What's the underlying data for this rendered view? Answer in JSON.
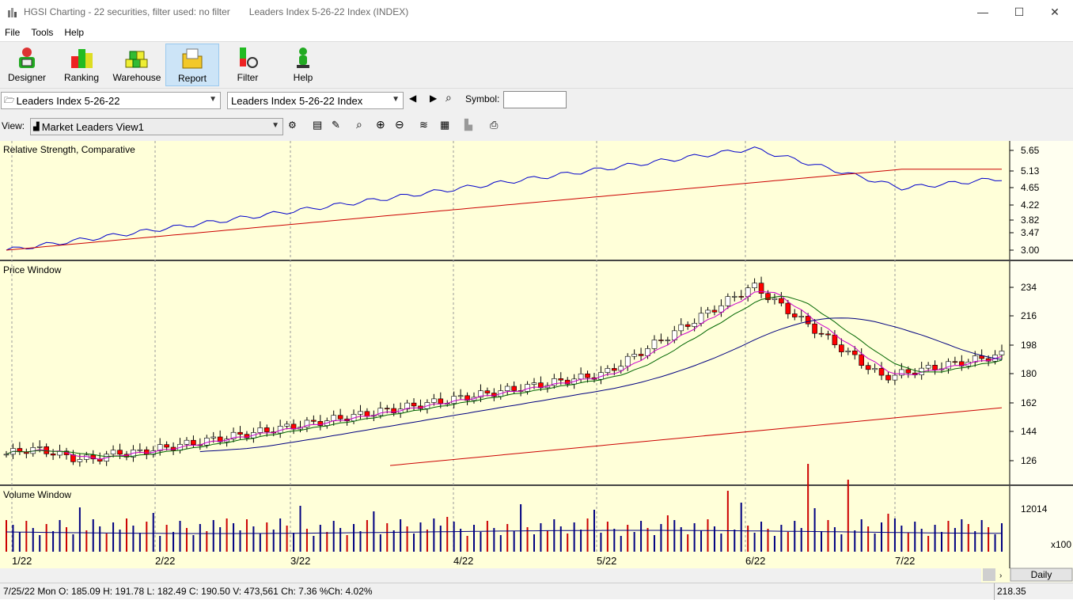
{
  "window": {
    "title": "HGSI Charting - 22 securities, filter used: no filter",
    "subtitle": "Leaders Index 5-26-22 Index (INDEX)",
    "minimize": "—",
    "maximize": "☐",
    "close": "✕"
  },
  "menu": [
    "File",
    "Tools",
    "Help"
  ],
  "toolbar": [
    {
      "label": "Designer",
      "icon": "designer-icon"
    },
    {
      "label": "Ranking",
      "icon": "ranking-icon"
    },
    {
      "label": "Warehouse",
      "icon": "warehouse-icon"
    },
    {
      "label": "Report",
      "icon": "report-icon"
    },
    {
      "label": "Filter",
      "icon": "filter-icon"
    },
    {
      "label": "Help",
      "icon": "help-icon"
    }
  ],
  "selectors": {
    "list_value": "Leaders Index 5-26-22",
    "security_value": "Leaders Index 5-26-22 Index",
    "symbol_label": "Symbol:",
    "symbol_value": "",
    "view_label": "View:",
    "view_value": "Market Leaders View1"
  },
  "panes": {
    "rs_title": "Relative Strength, Comparative",
    "price_title": "Price Window",
    "volume_title": "Volume Window"
  },
  "chart_data": {
    "type": "candlestick",
    "x_labels": [
      "1/22",
      "2/22",
      "3/22",
      "4/22",
      "5/22",
      "6/22",
      "7/22"
    ],
    "rs_ticks": [
      "5.65",
      "5.13",
      "4.65",
      "4.22",
      "3.82",
      "3.47",
      "3.00"
    ],
    "price_ticks": [
      "234",
      "216",
      "198",
      "180",
      "162",
      "144",
      "126"
    ],
    "volume_ticks": [
      "12014"
    ],
    "volume_unit": "x100",
    "period": "Daily",
    "colors": {
      "up": "#ffffff",
      "down": "#ff0000",
      "rs_line": "#0000cc",
      "rs_ma": "#cc0000",
      "ma_short": "#cc00cc",
      "ma_mid": "#006600",
      "ma_long": "#000080",
      "ma_200": "#cc0000"
    }
  },
  "status": {
    "quote": "7/25/22 Mon O: 185.09 H: 191.78 L: 182.49 C: 190.50 V: 473,561 Ch: 7.36 %Ch: 4.02%",
    "price_readout": "218.35"
  }
}
